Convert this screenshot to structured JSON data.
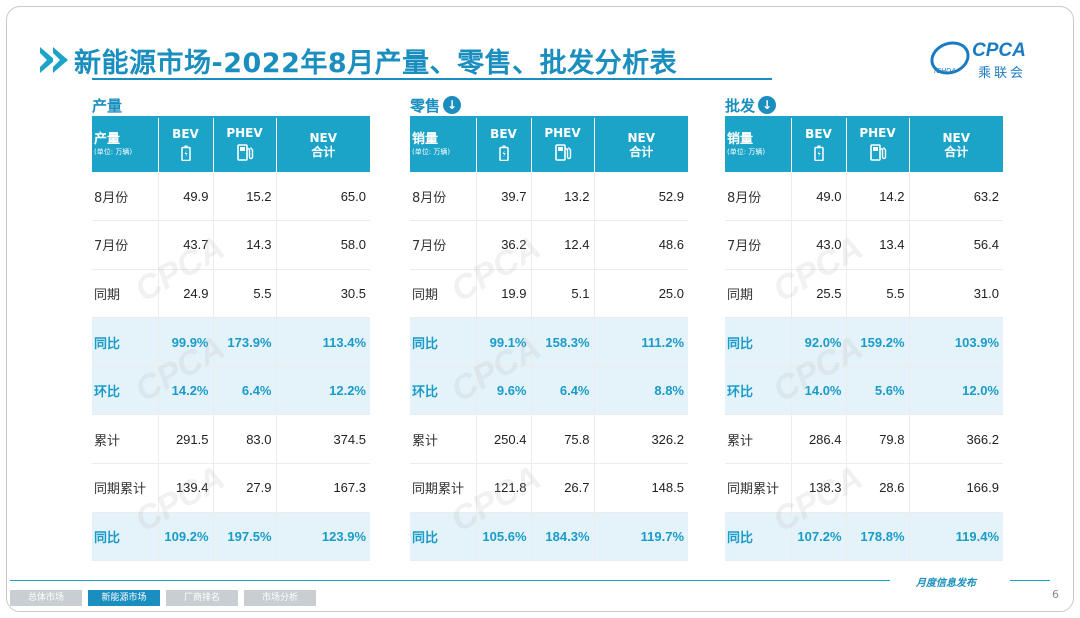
{
  "header": {
    "title": "新能源市场-2022年8月产量、零售、批发分析表"
  },
  "logo": {
    "text": "CPCA",
    "cn": "乘联会",
    "small": "ICHDA"
  },
  "icons": {
    "bev": "battery-icon",
    "phev": "fuel-pump-icon",
    "section_arrow": "arrow-down-circle-icon"
  },
  "colors": {
    "accent": "#1ba3c8",
    "highlight_text": "#1a9bc9",
    "highlight_bg": "#e4f3f9"
  },
  "column_labels": {
    "bev": "BEV",
    "phev": "PHEV",
    "nev_line1": "NEV",
    "nev_line2": "合计",
    "unit": "(单位: 万辆)"
  },
  "sections": [
    {
      "label": "产量",
      "row_header": "产量",
      "rows": [
        {
          "label": "8月份",
          "bev": "49.9",
          "phev": "15.2",
          "nev": "65.0",
          "highlight": false
        },
        {
          "label": "7月份",
          "bev": "43.7",
          "phev": "14.3",
          "nev": "58.0",
          "highlight": false
        },
        {
          "label": "同期",
          "bev": "24.9",
          "phev": "5.5",
          "nev": "30.5",
          "highlight": false
        },
        {
          "label": "同比",
          "bev": "99.9%",
          "phev": "173.9%",
          "nev": "113.4%",
          "highlight": true
        },
        {
          "label": "环比",
          "bev": "14.2%",
          "phev": "6.4%",
          "nev": "12.2%",
          "highlight": true
        },
        {
          "label": "累计",
          "bev": "291.5",
          "phev": "83.0",
          "nev": "374.5",
          "highlight": false
        },
        {
          "label": "同期累计",
          "bev": "139.4",
          "phev": "27.9",
          "nev": "167.3",
          "highlight": false
        },
        {
          "label": "同比",
          "bev": "109.2%",
          "phev": "197.5%",
          "nev": "123.9%",
          "highlight": true
        }
      ]
    },
    {
      "label": "零售",
      "row_header": "销量",
      "rows": [
        {
          "label": "8月份",
          "bev": "39.7",
          "phev": "13.2",
          "nev": "52.9",
          "highlight": false
        },
        {
          "label": "7月份",
          "bev": "36.2",
          "phev": "12.4",
          "nev": "48.6",
          "highlight": false
        },
        {
          "label": "同期",
          "bev": "19.9",
          "phev": "5.1",
          "nev": "25.0",
          "highlight": false
        },
        {
          "label": "同比",
          "bev": "99.1%",
          "phev": "158.3%",
          "nev": "111.2%",
          "highlight": true
        },
        {
          "label": "环比",
          "bev": "9.6%",
          "phev": "6.4%",
          "nev": "8.8%",
          "highlight": true
        },
        {
          "label": "累计",
          "bev": "250.4",
          "phev": "75.8",
          "nev": "326.2",
          "highlight": false
        },
        {
          "label": "同期累计",
          "bev": "121.8",
          "phev": "26.7",
          "nev": "148.5",
          "highlight": false
        },
        {
          "label": "同比",
          "bev": "105.6%",
          "phev": "184.3%",
          "nev": "119.7%",
          "highlight": true
        }
      ]
    },
    {
      "label": "批发",
      "row_header": "销量",
      "rows": [
        {
          "label": "8月份",
          "bev": "49.0",
          "phev": "14.2",
          "nev": "63.2",
          "highlight": false
        },
        {
          "label": "7月份",
          "bev": "43.0",
          "phev": "13.4",
          "nev": "56.4",
          "highlight": false
        },
        {
          "label": "同期",
          "bev": "25.5",
          "phev": "5.5",
          "nev": "31.0",
          "highlight": false
        },
        {
          "label": "同比",
          "bev": "92.0%",
          "phev": "159.2%",
          "nev": "103.9%",
          "highlight": true
        },
        {
          "label": "环比",
          "bev": "14.0%",
          "phev": "5.6%",
          "nev": "12.0%",
          "highlight": true
        },
        {
          "label": "累计",
          "bev": "286.4",
          "phev": "79.8",
          "nev": "366.2",
          "highlight": false
        },
        {
          "label": "同期累计",
          "bev": "138.3",
          "phev": "28.6",
          "nev": "166.9",
          "highlight": false
        },
        {
          "label": "同比",
          "bev": "107.2%",
          "phev": "178.8%",
          "nev": "119.4%",
          "highlight": true
        }
      ]
    }
  ],
  "footer": {
    "tabs": [
      "总体市场",
      "新能源市场",
      "厂商排名",
      "市场分析"
    ],
    "active_tab": 1,
    "text": "月度信息发布",
    "page_number": "6"
  }
}
